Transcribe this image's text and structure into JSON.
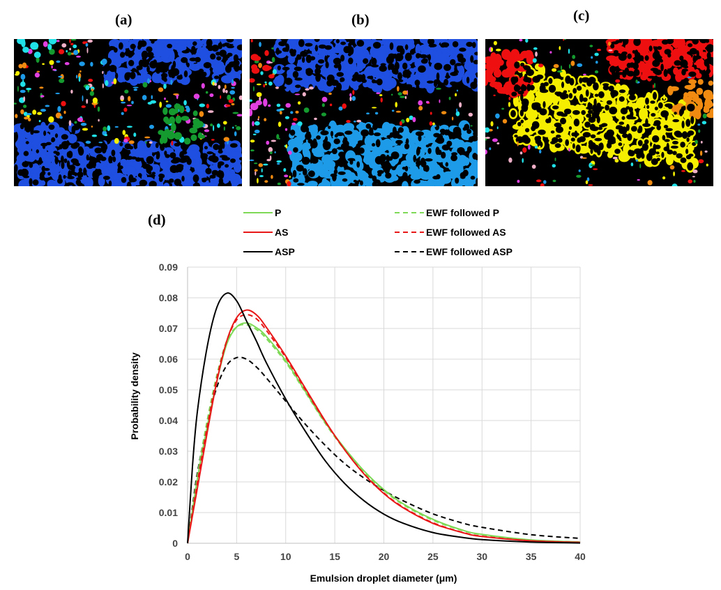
{
  "panels": {
    "a": "(a)",
    "b": "(b)",
    "c": "(c)",
    "d": "(d)"
  },
  "micrograph_colors": {
    "background": "#000000",
    "blue": "#1f4fe0",
    "light_blue": "#1e9be8",
    "yellow": "#f5ee00",
    "red": "#ee1010",
    "orange": "#f08a10",
    "cyan": "#20e0e8",
    "green": "#159a30",
    "magenta": "#e040e0",
    "pink": "#f0b0c8"
  },
  "chart_data": {
    "type": "line",
    "title": "",
    "xlabel": "Emulsion droplet diameter (μm)",
    "ylabel": "Probability density",
    "xlim": [
      0,
      40
    ],
    "ylim": [
      0,
      0.09
    ],
    "x_ticks": [
      "0",
      "5",
      "10",
      "15",
      "20",
      "25",
      "30",
      "35",
      "40"
    ],
    "y_ticks": [
      "0",
      "0.01",
      "0.02",
      "0.03",
      "0.04",
      "0.05",
      "0.06",
      "0.07",
      "0.08",
      "0.09"
    ],
    "grid": true,
    "legend_position": "top",
    "series": [
      {
        "name": "P",
        "color": "#7ed957",
        "dash": "solid",
        "x": [
          0,
          1,
          2,
          3,
          4,
          5,
          6,
          7,
          8,
          10,
          12,
          14,
          16,
          18,
          20,
          22,
          25,
          28,
          30,
          35,
          40
        ],
        "y": [
          0,
          0.021,
          0.038,
          0.053,
          0.065,
          0.0705,
          0.0718,
          0.0703,
          0.0675,
          0.0595,
          0.0495,
          0.0395,
          0.031,
          0.0235,
          0.0175,
          0.0128,
          0.0078,
          0.0043,
          0.0029,
          0.0011,
          0.0004
        ]
      },
      {
        "name": "AS",
        "color": "#e81818",
        "dash": "solid",
        "x": [
          0,
          1,
          2,
          3,
          4,
          5,
          6,
          7,
          8,
          10,
          12,
          14,
          16,
          18,
          20,
          22,
          25,
          28,
          30,
          35,
          40
        ],
        "y": [
          0,
          0.018,
          0.036,
          0.053,
          0.066,
          0.0735,
          0.076,
          0.0745,
          0.0705,
          0.061,
          0.0505,
          0.04,
          0.0305,
          0.0225,
          0.0162,
          0.0115,
          0.0065,
          0.0035,
          0.0022,
          0.0008,
          0.0003
        ]
      },
      {
        "name": "ASP",
        "color": "#000000",
        "dash": "solid",
        "x": [
          0,
          0.5,
          1,
          2,
          3,
          4,
          5,
          6,
          7,
          8,
          10,
          12,
          14,
          16,
          18,
          20,
          22,
          25,
          28,
          30,
          35,
          40
        ],
        "y": [
          0,
          0.025,
          0.043,
          0.064,
          0.077,
          0.0815,
          0.079,
          0.0725,
          0.066,
          0.059,
          0.047,
          0.0365,
          0.027,
          0.0195,
          0.0138,
          0.0095,
          0.0065,
          0.0035,
          0.0019,
          0.0012,
          0.0004,
          0.0001
        ]
      },
      {
        "name": "EWF followed P",
        "color": "#7ed957",
        "dash": "dashed",
        "x": [
          0,
          1,
          2,
          3,
          4,
          5,
          6,
          7,
          8,
          10,
          12,
          14,
          16,
          18,
          20,
          22,
          25,
          28,
          30,
          35,
          40
        ],
        "y": [
          0,
          0.022,
          0.04,
          0.055,
          0.066,
          0.0705,
          0.0712,
          0.0697,
          0.0668,
          0.059,
          0.0492,
          0.0392,
          0.0305,
          0.023,
          0.0172,
          0.0125,
          0.0075,
          0.0042,
          0.0028,
          0.001,
          0.0004
        ]
      },
      {
        "name": "EWF followed AS",
        "color": "#e81818",
        "dash": "dashed",
        "x": [
          0,
          1,
          2,
          3,
          4,
          5,
          6,
          7,
          8,
          10,
          12,
          14,
          16,
          18,
          20,
          22,
          25,
          28,
          30,
          35,
          40
        ],
        "y": [
          0,
          0.02,
          0.038,
          0.054,
          0.066,
          0.0728,
          0.0745,
          0.0732,
          0.0695,
          0.0605,
          0.05,
          0.0398,
          0.0305,
          0.0226,
          0.0164,
          0.0117,
          0.0067,
          0.0036,
          0.0023,
          0.0008,
          0.0003
        ]
      },
      {
        "name": "EWF followed ASP",
        "color": "#000000",
        "dash": "dashed",
        "x": [
          0,
          0.5,
          1,
          2,
          3,
          4,
          5,
          6,
          7,
          8,
          10,
          12,
          14,
          16,
          18,
          20,
          22,
          25,
          28,
          30,
          35,
          40
        ],
        "y": [
          0,
          0.012,
          0.023,
          0.039,
          0.051,
          0.058,
          0.0605,
          0.06,
          0.0575,
          0.054,
          0.0463,
          0.0388,
          0.032,
          0.026,
          0.0212,
          0.0172,
          0.0138,
          0.0096,
          0.0066,
          0.0052,
          0.0028,
          0.0016
        ]
      }
    ]
  }
}
